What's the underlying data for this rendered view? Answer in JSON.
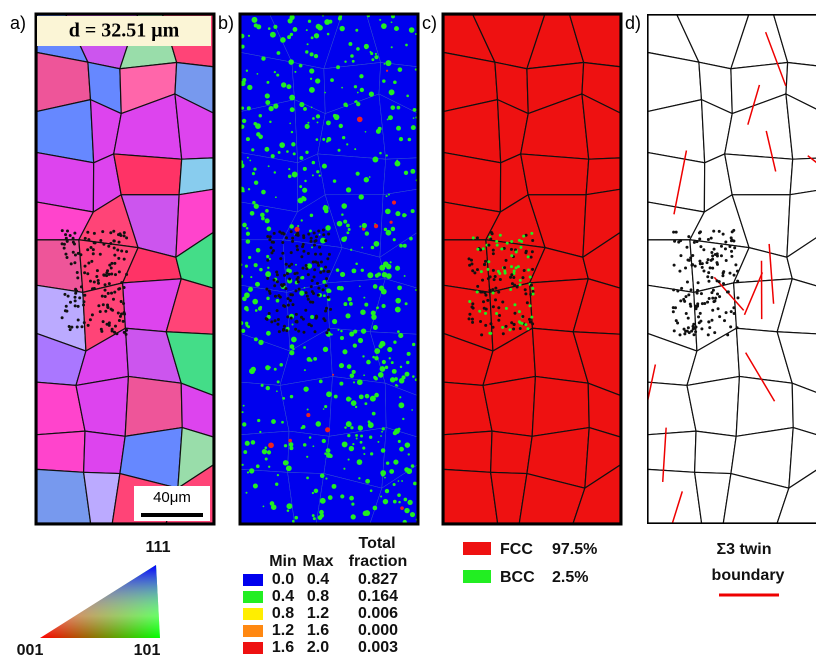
{
  "panels": [
    {
      "label": "a)",
      "annotation": "d = 32.51 μm",
      "scale_bar": "40μm"
    },
    {
      "label": "b)"
    },
    {
      "label": "c)"
    },
    {
      "label": "d)"
    }
  ],
  "ipf_triangle": {
    "top": "111",
    "left": "001",
    "right": "101"
  },
  "kam_legend": {
    "headers": [
      "Min",
      "Max",
      "Total",
      "fraction"
    ],
    "rows": [
      [
        "0.0",
        "0.4",
        "0.827"
      ],
      [
        "0.4",
        "0.8",
        "0.164"
      ],
      [
        "0.8",
        "1.2",
        "0.006"
      ],
      [
        "1.2",
        "1.6",
        "0.000"
      ],
      [
        "1.6",
        "2.0",
        "0.003"
      ]
    ]
  },
  "phase_legend": [
    {
      "name": "FCC",
      "fraction": "97.5%"
    },
    {
      "name": "BCC",
      "fraction": "2.5%"
    }
  ],
  "twin_legend": {
    "line1": "Σ3 twin",
    "line2": "boundary"
  }
}
